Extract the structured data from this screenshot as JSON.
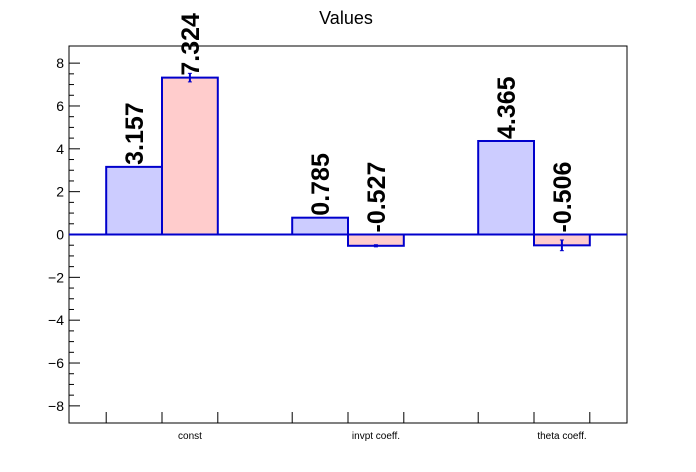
{
  "chart_data": {
    "type": "bar",
    "title": "Values",
    "xlabel": "",
    "ylabel": "",
    "categories": [
      "const",
      "invpt coeff.",
      "theta coeff."
    ],
    "ylim": [
      -8.8,
      8.8
    ],
    "yticks": [
      -8,
      -6,
      -4,
      -2,
      0,
      2,
      4,
      6,
      8
    ],
    "ytick_labels": [
      "−8",
      "−6",
      "−4",
      "−2",
      "0",
      "2",
      "4",
      "6",
      "8"
    ],
    "grid": false,
    "legend": "none",
    "series": [
      {
        "values": [
          3.157,
          0.785,
          4.365
        ],
        "labels": [
          "3.157",
          "0.785",
          "4.365"
        ],
        "errors": [
          0,
          0,
          0
        ],
        "fill": "#ccccff",
        "stroke": "#0000cc"
      },
      {
        "values": [
          7.324,
          -0.527,
          -0.506
        ],
        "labels": [
          "7.324",
          "-0.527",
          "-0.506"
        ],
        "errors": [
          0.2,
          0.05,
          0.25
        ],
        "fill": "#ffcccc",
        "stroke": "#0000cc"
      }
    ]
  },
  "colors": {
    "axis": "#000000",
    "zero_line": "#0000cc",
    "background": "#ffffff"
  }
}
